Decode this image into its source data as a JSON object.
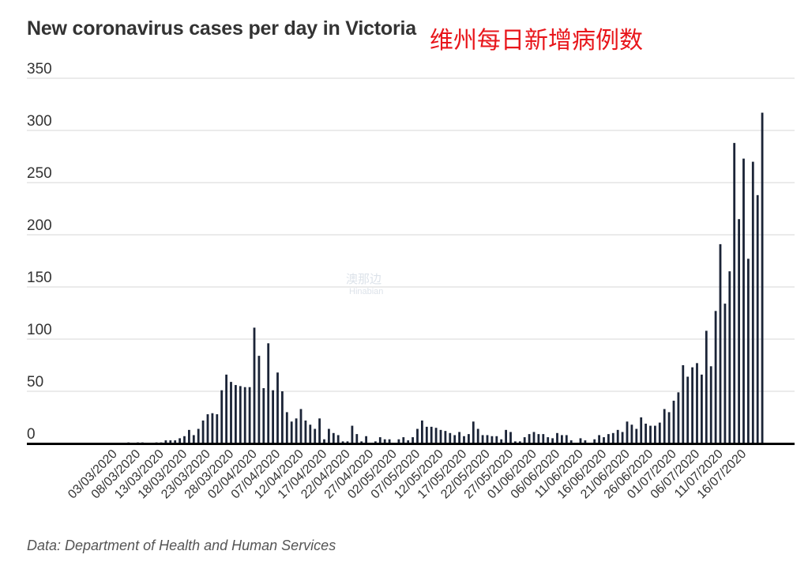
{
  "title": "New coronavirus cases per day in Victoria",
  "subtitle": "维州每日新增病例数",
  "source": "Data: Department of Health and Human Services",
  "watermark": {
    "main": "澳那边",
    "sub": "Hinabian"
  },
  "colors": {
    "bar": "#1b2437",
    "grid": "#d7d7d7",
    "axis": "#000000",
    "text": "#333333",
    "subtitle": "#e8161b"
  },
  "chart_data": {
    "type": "bar",
    "title": "New coronavirus cases per day in Victoria",
    "xlabel": "",
    "ylabel": "",
    "ylim": [
      0,
      350
    ],
    "yticks": [
      0,
      50,
      100,
      150,
      200,
      250,
      300,
      350
    ],
    "start_date": "2020-03-01",
    "xtick_labels": [
      "03/03/2020",
      "08/03/2020",
      "13/03/2020",
      "18/03/2020",
      "23/03/2020",
      "28/03/2020",
      "02/04/2020",
      "07/04/2020",
      "12/04/2020",
      "17/04/2020",
      "22/04/2020",
      "27/04/2020",
      "02/05/2020",
      "07/05/2020",
      "12/05/2020",
      "17/05/2020",
      "22/05/2020",
      "27/05/2020",
      "01/06/2020",
      "06/06/2020",
      "11/06/2020",
      "16/06/2020",
      "21/06/2020",
      "26/06/2020",
      "01/07/2020",
      "06/07/2020",
      "11/07/2020",
      "16/07/2020"
    ],
    "values": [
      0,
      0,
      0,
      0,
      0,
      1,
      0,
      1,
      1,
      0,
      0,
      1,
      1,
      3,
      3,
      3,
      5,
      7,
      13,
      8,
      14,
      22,
      28,
      29,
      28,
      51,
      66,
      59,
      56,
      55,
      54,
      54,
      111,
      84,
      53,
      96,
      51,
      68,
      50,
      30,
      21,
      24,
      33,
      22,
      18,
      14,
      24,
      4,
      14,
      10,
      8,
      2,
      2,
      17,
      9,
      2,
      7,
      0,
      2,
      6,
      4,
      4,
      0,
      4,
      6,
      3,
      6,
      14,
      22,
      16,
      16,
      15,
      13,
      12,
      10,
      8,
      11,
      7,
      9,
      21,
      14,
      8,
      8,
      7,
      7,
      4,
      13,
      11,
      2,
      2,
      6,
      9,
      11,
      9,
      9,
      6,
      5,
      10,
      8,
      8,
      3,
      0,
      5,
      3,
      0,
      4,
      8,
      6,
      9,
      10,
      13,
      11,
      21,
      18,
      14,
      25,
      19,
      17,
      17,
      20,
      33,
      30,
      41,
      49,
      75,
      64,
      73,
      77,
      66,
      108,
      74,
      127,
      191,
      134,
      165,
      288,
      215,
      273,
      177,
      270,
      238,
      317
    ]
  }
}
